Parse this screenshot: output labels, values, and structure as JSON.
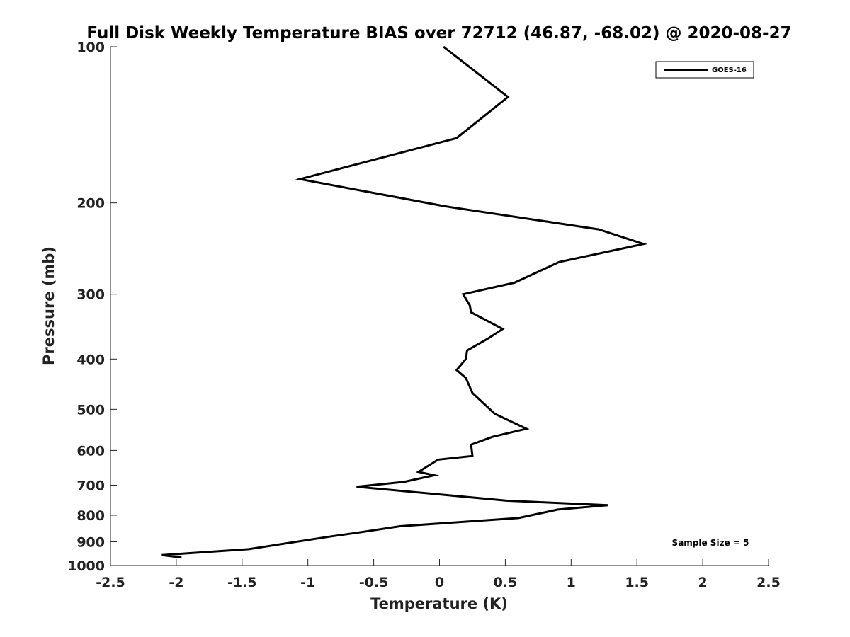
{
  "chart_data": {
    "type": "line",
    "title": "Full Disk Weekly Temperature BIAS over 72712 (46.87, -68.02) @ 2020-08-27",
    "xlabel": "Temperature (K)",
    "ylabel": "Pressure (mb)",
    "xlim": [
      -2.5,
      2.5
    ],
    "ylim": [
      100,
      1000
    ],
    "y_scale": "log",
    "y_reversed": true,
    "x_ticks": [
      -2.5,
      -2,
      -1.5,
      -1,
      -0.5,
      0,
      0.5,
      1,
      1.5,
      2,
      2.5
    ],
    "x_tick_labels": [
      "-2.5",
      "-2",
      "-1.5",
      "-1",
      "-0.5",
      "0",
      "0.5",
      "1",
      "1.5",
      "2",
      "2.5"
    ],
    "y_ticks": [
      100,
      200,
      300,
      400,
      500,
      600,
      700,
      800,
      900,
      1000
    ],
    "y_tick_labels": [
      "100",
      "200",
      "300",
      "400",
      "500",
      "600",
      "700",
      "800",
      "900",
      "1000"
    ],
    "grid": false,
    "legend_position": "top-right",
    "annotation": "Sample Size = 5",
    "series": [
      {
        "name": "GOES-16",
        "color": "#000000",
        "x": [
          0.03,
          0.52,
          0.13,
          -1.06,
          0.04,
          1.21,
          1.55,
          0.91,
          0.57,
          0.18,
          0.23,
          0.24,
          0.48,
          0.37,
          0.21,
          0.2,
          0.13,
          0.2,
          0.25,
          0.42,
          0.66,
          0.4,
          0.24,
          0.25,
          -0.01,
          -0.16,
          -0.04,
          -0.27,
          -0.63,
          0.51,
          1.28,
          0.9,
          0.6,
          -0.3,
          -0.63,
          -0.84,
          -1.45,
          -2.11,
          -1.96
        ],
        "y": [
          100,
          125,
          150,
          180,
          203,
          225,
          240,
          260,
          285,
          300,
          315,
          325,
          350,
          365,
          385,
          400,
          420,
          435,
          465,
          510,
          545,
          565,
          585,
          615,
          625,
          660,
          670,
          690,
          705,
          750,
          765,
          780,
          810,
          840,
          865,
          880,
          930,
          955,
          965
        ]
      }
    ]
  }
}
